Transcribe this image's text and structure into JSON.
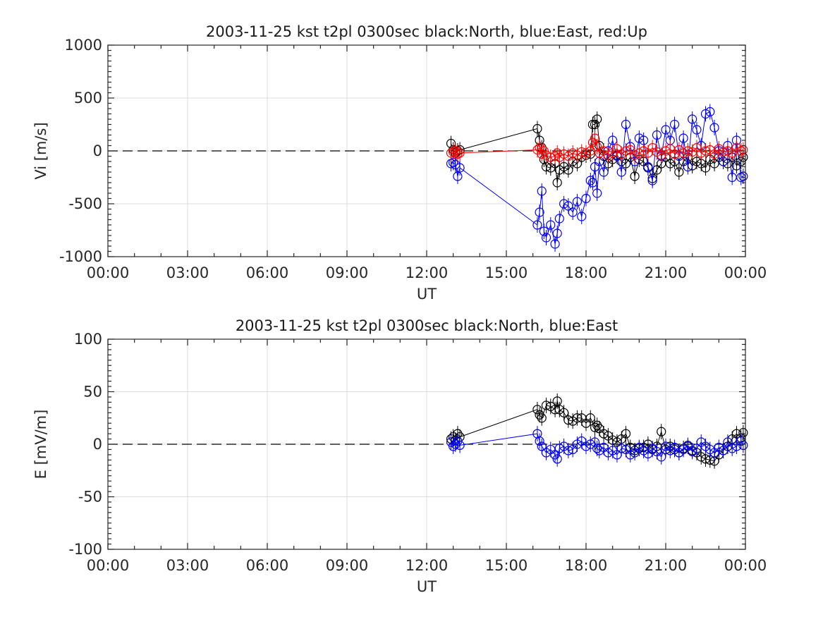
{
  "chart_data": [
    {
      "type": "scatter",
      "title": "2003-11-25 kst t2pl 0300sec black:North, blue:East, red:Up",
      "xlabel": "UT",
      "ylabel": "Vi [m/s]",
      "ylim": [
        -1000,
        1000
      ],
      "yticks": [
        "1000",
        "500",
        "0",
        "-500",
        "-1000"
      ],
      "xlim_hours": [
        0,
        24
      ],
      "xticks": [
        "00:00",
        "03:00",
        "06:00",
        "09:00",
        "12:00",
        "15:00",
        "18:00",
        "21:00",
        "00:00"
      ],
      "grid": true,
      "zero_line": "dashed",
      "marker": "open-circle-with-errorbar",
      "series": [
        {
          "name": "North",
          "color": "#000000",
          "x": [
            "12:55",
            "13:00",
            "13:05",
            "13:10",
            "13:15",
            "16:10",
            "16:15",
            "16:20",
            "16:25",
            "16:30",
            "16:40",
            "16:50",
            "16:55",
            "17:00",
            "17:10",
            "17:20",
            "17:30",
            "17:40",
            "17:50",
            "18:00",
            "18:10",
            "18:15",
            "18:20",
            "18:25",
            "18:30",
            "18:40",
            "18:50",
            "19:00",
            "19:10",
            "19:20",
            "19:30",
            "19:40",
            "19:50",
            "20:00",
            "20:10",
            "20:20",
            "20:30",
            "20:40",
            "20:50",
            "21:00",
            "21:10",
            "21:20",
            "21:30",
            "21:40",
            "21:50",
            "22:00",
            "22:10",
            "22:20",
            "22:30",
            "22:40",
            "22:50",
            "23:00",
            "23:10",
            "23:20",
            "23:30",
            "23:40",
            "23:50",
            "23:55"
          ],
          "y": [
            70,
            10,
            -20,
            0,
            10,
            210,
            100,
            30,
            -80,
            -150,
            -160,
            -120,
            -300,
            -180,
            -150,
            -180,
            -100,
            -120,
            -60,
            -40,
            -30,
            250,
            250,
            300,
            50,
            -50,
            -120,
            -80,
            -40,
            -100,
            -120,
            -60,
            -240,
            -80,
            -100,
            -160,
            -260,
            -180,
            -120,
            -60,
            -120,
            -100,
            -200,
            -100,
            -60,
            -140,
            -100,
            -120,
            -160,
            -80,
            -120,
            -60,
            -100,
            -120,
            -60,
            -140,
            -100,
            -60
          ]
        },
        {
          "name": "East",
          "color": "#0000ff",
          "x": [
            "12:55",
            "13:00",
            "13:05",
            "13:10",
            "13:15",
            "16:10",
            "16:15",
            "16:20",
            "16:25",
            "16:30",
            "16:40",
            "16:50",
            "16:55",
            "17:00",
            "17:10",
            "17:20",
            "17:30",
            "17:40",
            "17:50",
            "18:00",
            "18:10",
            "18:15",
            "18:20",
            "18:25",
            "18:30",
            "18:40",
            "18:50",
            "19:00",
            "19:10",
            "19:20",
            "19:30",
            "19:40",
            "19:50",
            "20:00",
            "20:10",
            "20:20",
            "20:30",
            "20:40",
            "20:50",
            "21:00",
            "21:10",
            "21:20",
            "21:30",
            "21:40",
            "21:50",
            "22:00",
            "22:10",
            "22:20",
            "22:30",
            "22:40",
            "22:50",
            "23:00",
            "23:10",
            "23:20",
            "23:30",
            "23:40",
            "23:50",
            "23:55"
          ],
          "y": [
            -120,
            -110,
            -130,
            -240,
            -160,
            -700,
            -580,
            -380,
            -760,
            -820,
            -700,
            -880,
            -780,
            -640,
            -500,
            -520,
            -580,
            -480,
            -620,
            -450,
            -280,
            -300,
            -150,
            -400,
            -100,
            -200,
            0,
            100,
            -50,
            -200,
            250,
            40,
            -100,
            120,
            100,
            -150,
            -280,
            150,
            -50,
            200,
            100,
            250,
            -50,
            120,
            -150,
            300,
            200,
            50,
            350,
            370,
            220,
            0,
            -100,
            50,
            -250,
            100,
            -250,
            -240
          ]
        },
        {
          "name": "Up",
          "color": "#ff0000",
          "x": [
            "12:55",
            "13:00",
            "13:05",
            "13:10",
            "13:15",
            "16:10",
            "16:15",
            "16:20",
            "16:25",
            "16:30",
            "16:40",
            "16:50",
            "16:55",
            "17:00",
            "17:10",
            "17:20",
            "17:30",
            "17:40",
            "17:50",
            "18:00",
            "18:10",
            "18:15",
            "18:20",
            "18:25",
            "18:30",
            "18:40",
            "18:50",
            "19:00",
            "19:10",
            "19:20",
            "19:30",
            "19:40",
            "19:50",
            "20:00",
            "20:10",
            "20:20",
            "20:30",
            "20:40",
            "20:50",
            "21:00",
            "21:10",
            "21:20",
            "21:30",
            "21:40",
            "21:50",
            "22:00",
            "22:10",
            "22:20",
            "22:30",
            "22:40",
            "22:50",
            "23:00",
            "23:10",
            "23:20",
            "23:30",
            "23:40",
            "23:50",
            "23:55"
          ],
          "y": [
            -20,
            -10,
            0,
            -30,
            -20,
            10,
            30,
            -30,
            0,
            -40,
            -60,
            -50,
            -20,
            -60,
            -30,
            -50,
            -20,
            -40,
            -10,
            -20,
            0,
            80,
            120,
            40,
            -20,
            0,
            -40,
            -20,
            20,
            -30,
            0,
            10,
            -40,
            -20,
            0,
            -20,
            30,
            -10,
            -40,
            0,
            20,
            -30,
            10,
            -20,
            0,
            -10,
            30,
            -20,
            0,
            10,
            -30,
            20,
            -10,
            0,
            -20,
            30,
            0,
            10
          ]
        }
      ]
    },
    {
      "type": "scatter",
      "title": "2003-11-25 kst t2pl 0300sec black:North, blue:East",
      "xlabel": "UT",
      "ylabel": "E [mV/m]",
      "ylim": [
        -100,
        100
      ],
      "yticks": [
        "100",
        "50",
        "0",
        "-50",
        "-100"
      ],
      "xlim_hours": [
        0,
        24
      ],
      "xticks": [
        "00:00",
        "03:00",
        "06:00",
        "09:00",
        "12:00",
        "15:00",
        "18:00",
        "21:00",
        "00:00"
      ],
      "grid": true,
      "zero_line": "dashed",
      "marker": "open-circle-with-errorbar",
      "series": [
        {
          "name": "North",
          "color": "#000000",
          "x": [
            "12:55",
            "13:00",
            "13:05",
            "13:10",
            "13:15",
            "16:10",
            "16:15",
            "16:20",
            "16:30",
            "16:40",
            "16:50",
            "16:55",
            "17:00",
            "17:10",
            "17:20",
            "17:30",
            "17:40",
            "17:50",
            "18:00",
            "18:10",
            "18:20",
            "18:25",
            "18:30",
            "18:40",
            "18:50",
            "19:00",
            "19:10",
            "19:20",
            "19:30",
            "19:40",
            "19:50",
            "20:00",
            "20:10",
            "20:20",
            "20:30",
            "20:40",
            "20:50",
            "21:00",
            "21:10",
            "21:20",
            "21:30",
            "21:40",
            "21:50",
            "22:00",
            "22:10",
            "22:20",
            "22:30",
            "22:40",
            "22:50",
            "23:00",
            "23:10",
            "23:20",
            "23:30",
            "23:40",
            "23:50",
            "23:55"
          ],
          "y": [
            5,
            7,
            4,
            10,
            7,
            33,
            28,
            25,
            37,
            36,
            33,
            41,
            33,
            30,
            23,
            22,
            25,
            25,
            20,
            25,
            16,
            18,
            15,
            10,
            8,
            4,
            2,
            5,
            10,
            -3,
            -6,
            -4,
            -3,
            0,
            -5,
            -2,
            12,
            -5,
            -2,
            -5,
            -8,
            -4,
            -2,
            -6,
            -8,
            -12,
            -14,
            -15,
            -16,
            -10,
            -6,
            -2,
            5,
            10,
            6,
            11
          ]
        },
        {
          "name": "East",
          "color": "#0000ff",
          "x": [
            "12:55",
            "13:00",
            "13:05",
            "13:10",
            "13:15",
            "16:10",
            "16:15",
            "16:20",
            "16:30",
            "16:40",
            "16:50",
            "16:55",
            "17:00",
            "17:10",
            "17:20",
            "17:30",
            "17:40",
            "17:50",
            "18:00",
            "18:10",
            "18:20",
            "18:25",
            "18:30",
            "18:40",
            "18:50",
            "19:00",
            "19:10",
            "19:20",
            "19:30",
            "19:40",
            "19:50",
            "20:00",
            "20:10",
            "20:20",
            "20:30",
            "20:40",
            "20:50",
            "21:00",
            "21:10",
            "21:20",
            "21:30",
            "21:40",
            "21:50",
            "22:00",
            "22:10",
            "22:20",
            "22:30",
            "22:40",
            "22:50",
            "23:00",
            "23:10",
            "23:20",
            "23:30",
            "23:40",
            "23:50",
            "23:55"
          ],
          "y": [
            2,
            -2,
            0,
            3,
            -1,
            10,
            3,
            -2,
            -8,
            -5,
            -10,
            -14,
            -4,
            -2,
            -6,
            -5,
            0,
            3,
            -2,
            0,
            2,
            -4,
            -6,
            -3,
            -8,
            -6,
            -10,
            -4,
            -5,
            -10,
            -8,
            -3,
            -6,
            -9,
            -4,
            -7,
            -12,
            -2,
            -6,
            -3,
            -8,
            -5,
            -1,
            -7,
            -4,
            2,
            -2,
            -5,
            -8,
            -3,
            -6,
            2,
            -4,
            -2,
            3,
            -1
          ]
        }
      ]
    }
  ]
}
